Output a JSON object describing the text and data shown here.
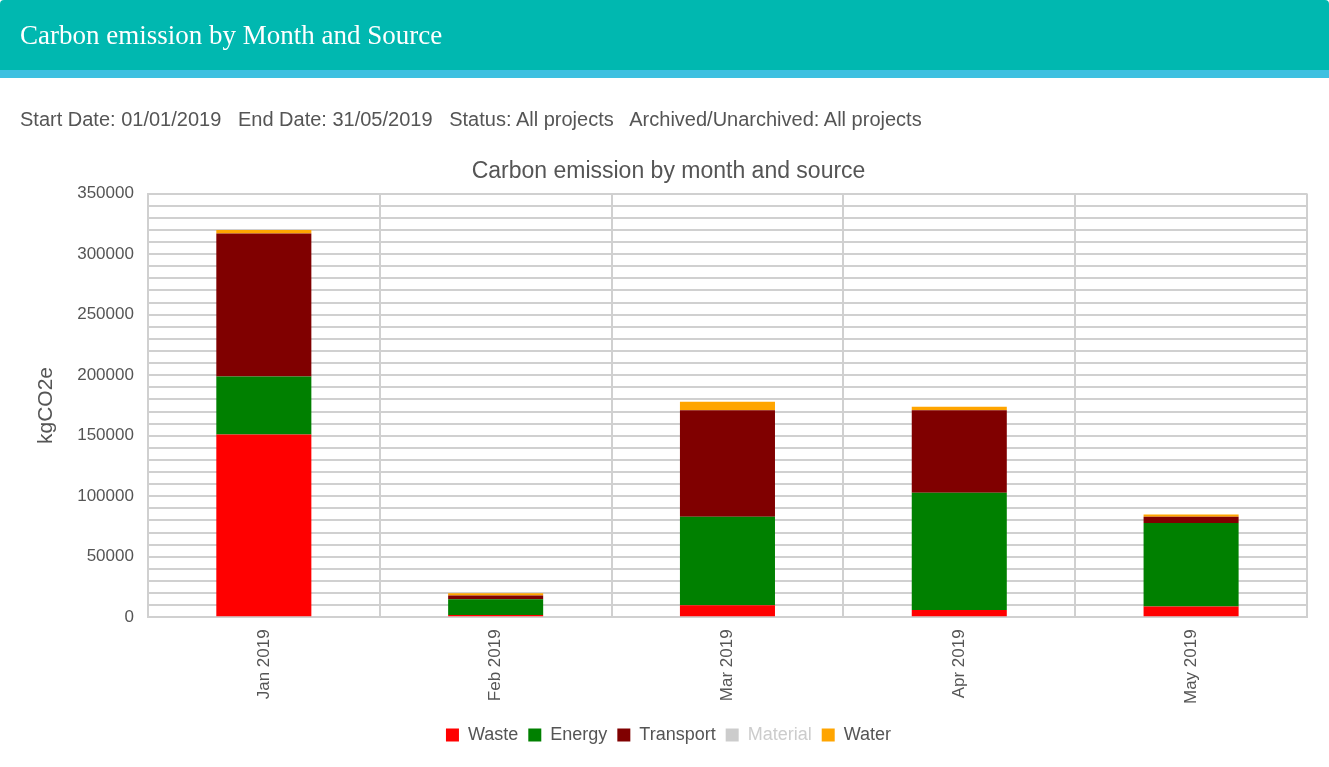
{
  "chart_data": {
    "type": "bar",
    "title": "Carbon emission by month and source",
    "ylabel": "kgCO2e",
    "annotations": [
      "Carbon emission by Month and Source",
      "Start Date: 01/01/2019   End Date: 31/05/2019   Status: All projects   Archived/Unarchived: All projects"
    ],
    "categories": [
      "Jan 2019",
      "Feb 2019",
      "Mar 2019",
      "Apr 2019",
      "May 2019"
    ],
    "stacked": true,
    "series": [
      {
        "name": "Waste",
        "color": "#ff0000",
        "values": [
          151000,
          2000,
          10000,
          6000,
          9000
        ]
      },
      {
        "name": "Energy",
        "color": "#008000",
        "values": [
          48000,
          13000,
          73000,
          97000,
          69000
        ]
      },
      {
        "name": "Transport",
        "color": "#800000",
        "values": [
          118000,
          3000,
          88000,
          68000,
          5000
        ]
      },
      {
        "name": "Material",
        "color": "#cccccc",
        "values": [
          null,
          null,
          null,
          null,
          null
        ]
      },
      {
        "name": "Water",
        "color": "#ffa500",
        "values": [
          3000,
          2000,
          7000,
          3000,
          2000
        ]
      }
    ],
    "ylim": [
      0,
      350000
    ],
    "yticks": [
      0,
      {
        "value": 10000,
        "label": null
      },
      {
        "value": 20000,
        "label": null
      },
      {
        "value": 30000,
        "label": null
      },
      {
        "value": 40000,
        "label": null
      },
      50000,
      {
        "value": 60000,
        "label": null
      },
      {
        "value": 70000,
        "label": null
      },
      {
        "value": 80000,
        "label": null
      },
      {
        "value": 90000,
        "label": null
      },
      100000,
      {
        "value": 110000,
        "label": null
      },
      {
        "value": 120000,
        "label": null
      },
      {
        "value": 130000,
        "label": null
      },
      {
        "value": 140000,
        "label": null
      },
      150000,
      {
        "value": 160000,
        "label": null
      },
      {
        "value": 170000,
        "label": null
      },
      {
        "value": 180000,
        "label": null
      },
      {
        "value": 190000,
        "label": null
      },
      200000,
      {
        "value": 210000,
        "label": null
      },
      {
        "value": 220000,
        "label": null
      },
      {
        "value": 230000,
        "label": null
      },
      {
        "value": 240000,
        "label": null
      },
      250000,
      {
        "value": 260000,
        "label": null
      },
      {
        "value": 270000,
        "label": null
      },
      {
        "value": 280000,
        "label": null
      },
      {
        "value": 290000,
        "label": null
      },
      300000,
      {
        "value": 310000,
        "label": null
      },
      {
        "value": 320000,
        "label": null
      },
      {
        "value": 330000,
        "label": null
      },
      {
        "value": 340000,
        "label": null
      },
      350000
    ],
    "grid": true,
    "legend": "bottom"
  }
}
